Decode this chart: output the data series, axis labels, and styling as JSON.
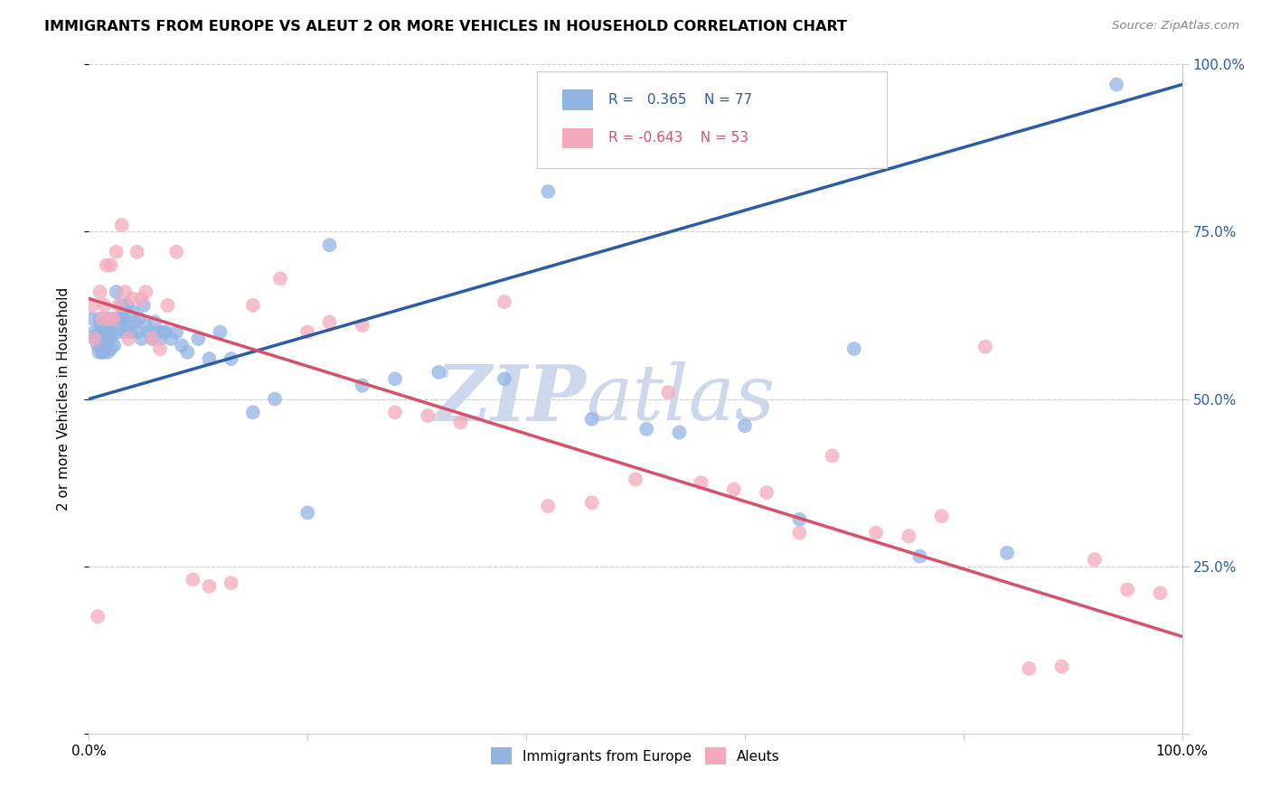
{
  "title": "IMMIGRANTS FROM EUROPE VS ALEUT 2 OR MORE VEHICLES IN HOUSEHOLD CORRELATION CHART",
  "source": "Source: ZipAtlas.com",
  "ylabel": "2 or more Vehicles in Household",
  "legend_blue_label": "Immigrants from Europe",
  "legend_pink_label": "Aleuts",
  "R_blue": 0.365,
  "N_blue": 77,
  "R_pink": -0.643,
  "N_pink": 53,
  "blue_color": "#92B4E3",
  "pink_color": "#F4AABC",
  "blue_line_color": "#2A5CA8",
  "pink_line_color": "#D9506A",
  "watermark_color": "#CDD8EC",
  "blue_line_start": 0.5,
  "blue_line_end": 0.97,
  "pink_line_start": 0.65,
  "pink_line_end": 0.145,
  "blue_points_x": [
    0.003,
    0.005,
    0.006,
    0.007,
    0.008,
    0.009,
    0.01,
    0.01,
    0.011,
    0.011,
    0.012,
    0.012,
    0.013,
    0.013,
    0.014,
    0.015,
    0.015,
    0.016,
    0.017,
    0.018,
    0.019,
    0.02,
    0.02,
    0.021,
    0.022,
    0.023,
    0.025,
    0.026,
    0.027,
    0.028,
    0.03,
    0.03,
    0.032,
    0.033,
    0.035,
    0.036,
    0.038,
    0.04,
    0.042,
    0.044,
    0.046,
    0.048,
    0.05,
    0.052,
    0.055,
    0.058,
    0.06,
    0.063,
    0.065,
    0.068,
    0.07,
    0.075,
    0.08,
    0.085,
    0.09,
    0.1,
    0.11,
    0.12,
    0.13,
    0.15,
    0.17,
    0.2,
    0.22,
    0.25,
    0.28,
    0.32,
    0.38,
    0.42,
    0.46,
    0.51,
    0.54,
    0.6,
    0.65,
    0.7,
    0.76,
    0.84,
    0.94
  ],
  "blue_points_y": [
    0.62,
    0.6,
    0.59,
    0.595,
    0.58,
    0.57,
    0.62,
    0.6,
    0.58,
    0.61,
    0.57,
    0.6,
    0.585,
    0.57,
    0.595,
    0.61,
    0.59,
    0.58,
    0.57,
    0.62,
    0.6,
    0.59,
    0.575,
    0.62,
    0.6,
    0.58,
    0.66,
    0.62,
    0.6,
    0.62,
    0.64,
    0.62,
    0.62,
    0.6,
    0.64,
    0.61,
    0.6,
    0.63,
    0.615,
    0.6,
    0.62,
    0.59,
    0.64,
    0.61,
    0.6,
    0.59,
    0.615,
    0.6,
    0.59,
    0.6,
    0.6,
    0.59,
    0.6,
    0.58,
    0.57,
    0.59,
    0.56,
    0.6,
    0.56,
    0.48,
    0.5,
    0.33,
    0.73,
    0.52,
    0.53,
    0.54,
    0.53,
    0.81,
    0.47,
    0.455,
    0.45,
    0.46,
    0.32,
    0.575,
    0.265,
    0.27,
    0.97
  ],
  "pink_points_x": [
    0.003,
    0.005,
    0.008,
    0.01,
    0.012,
    0.014,
    0.016,
    0.018,
    0.02,
    0.022,
    0.025,
    0.027,
    0.03,
    0.033,
    0.036,
    0.04,
    0.044,
    0.048,
    0.052,
    0.058,
    0.065,
    0.072,
    0.08,
    0.095,
    0.11,
    0.13,
    0.15,
    0.175,
    0.2,
    0.22,
    0.25,
    0.28,
    0.31,
    0.34,
    0.38,
    0.42,
    0.46,
    0.5,
    0.53,
    0.56,
    0.59,
    0.62,
    0.65,
    0.68,
    0.72,
    0.75,
    0.78,
    0.82,
    0.86,
    0.89,
    0.92,
    0.95,
    0.98
  ],
  "pink_points_y": [
    0.64,
    0.59,
    0.175,
    0.66,
    0.62,
    0.64,
    0.7,
    0.62,
    0.7,
    0.62,
    0.72,
    0.64,
    0.76,
    0.66,
    0.59,
    0.65,
    0.72,
    0.65,
    0.66,
    0.59,
    0.575,
    0.64,
    0.72,
    0.23,
    0.22,
    0.225,
    0.64,
    0.68,
    0.6,
    0.615,
    0.61,
    0.48,
    0.475,
    0.465,
    0.645,
    0.34,
    0.345,
    0.38,
    0.51,
    0.375,
    0.365,
    0.36,
    0.3,
    0.415,
    0.3,
    0.295,
    0.325,
    0.578,
    0.097,
    0.1,
    0.26,
    0.215,
    0.21
  ],
  "xlim": [
    0,
    1.0
  ],
  "ylim": [
    0,
    1.0
  ],
  "figsize": [
    14.06,
    8.92
  ],
  "dpi": 100
}
